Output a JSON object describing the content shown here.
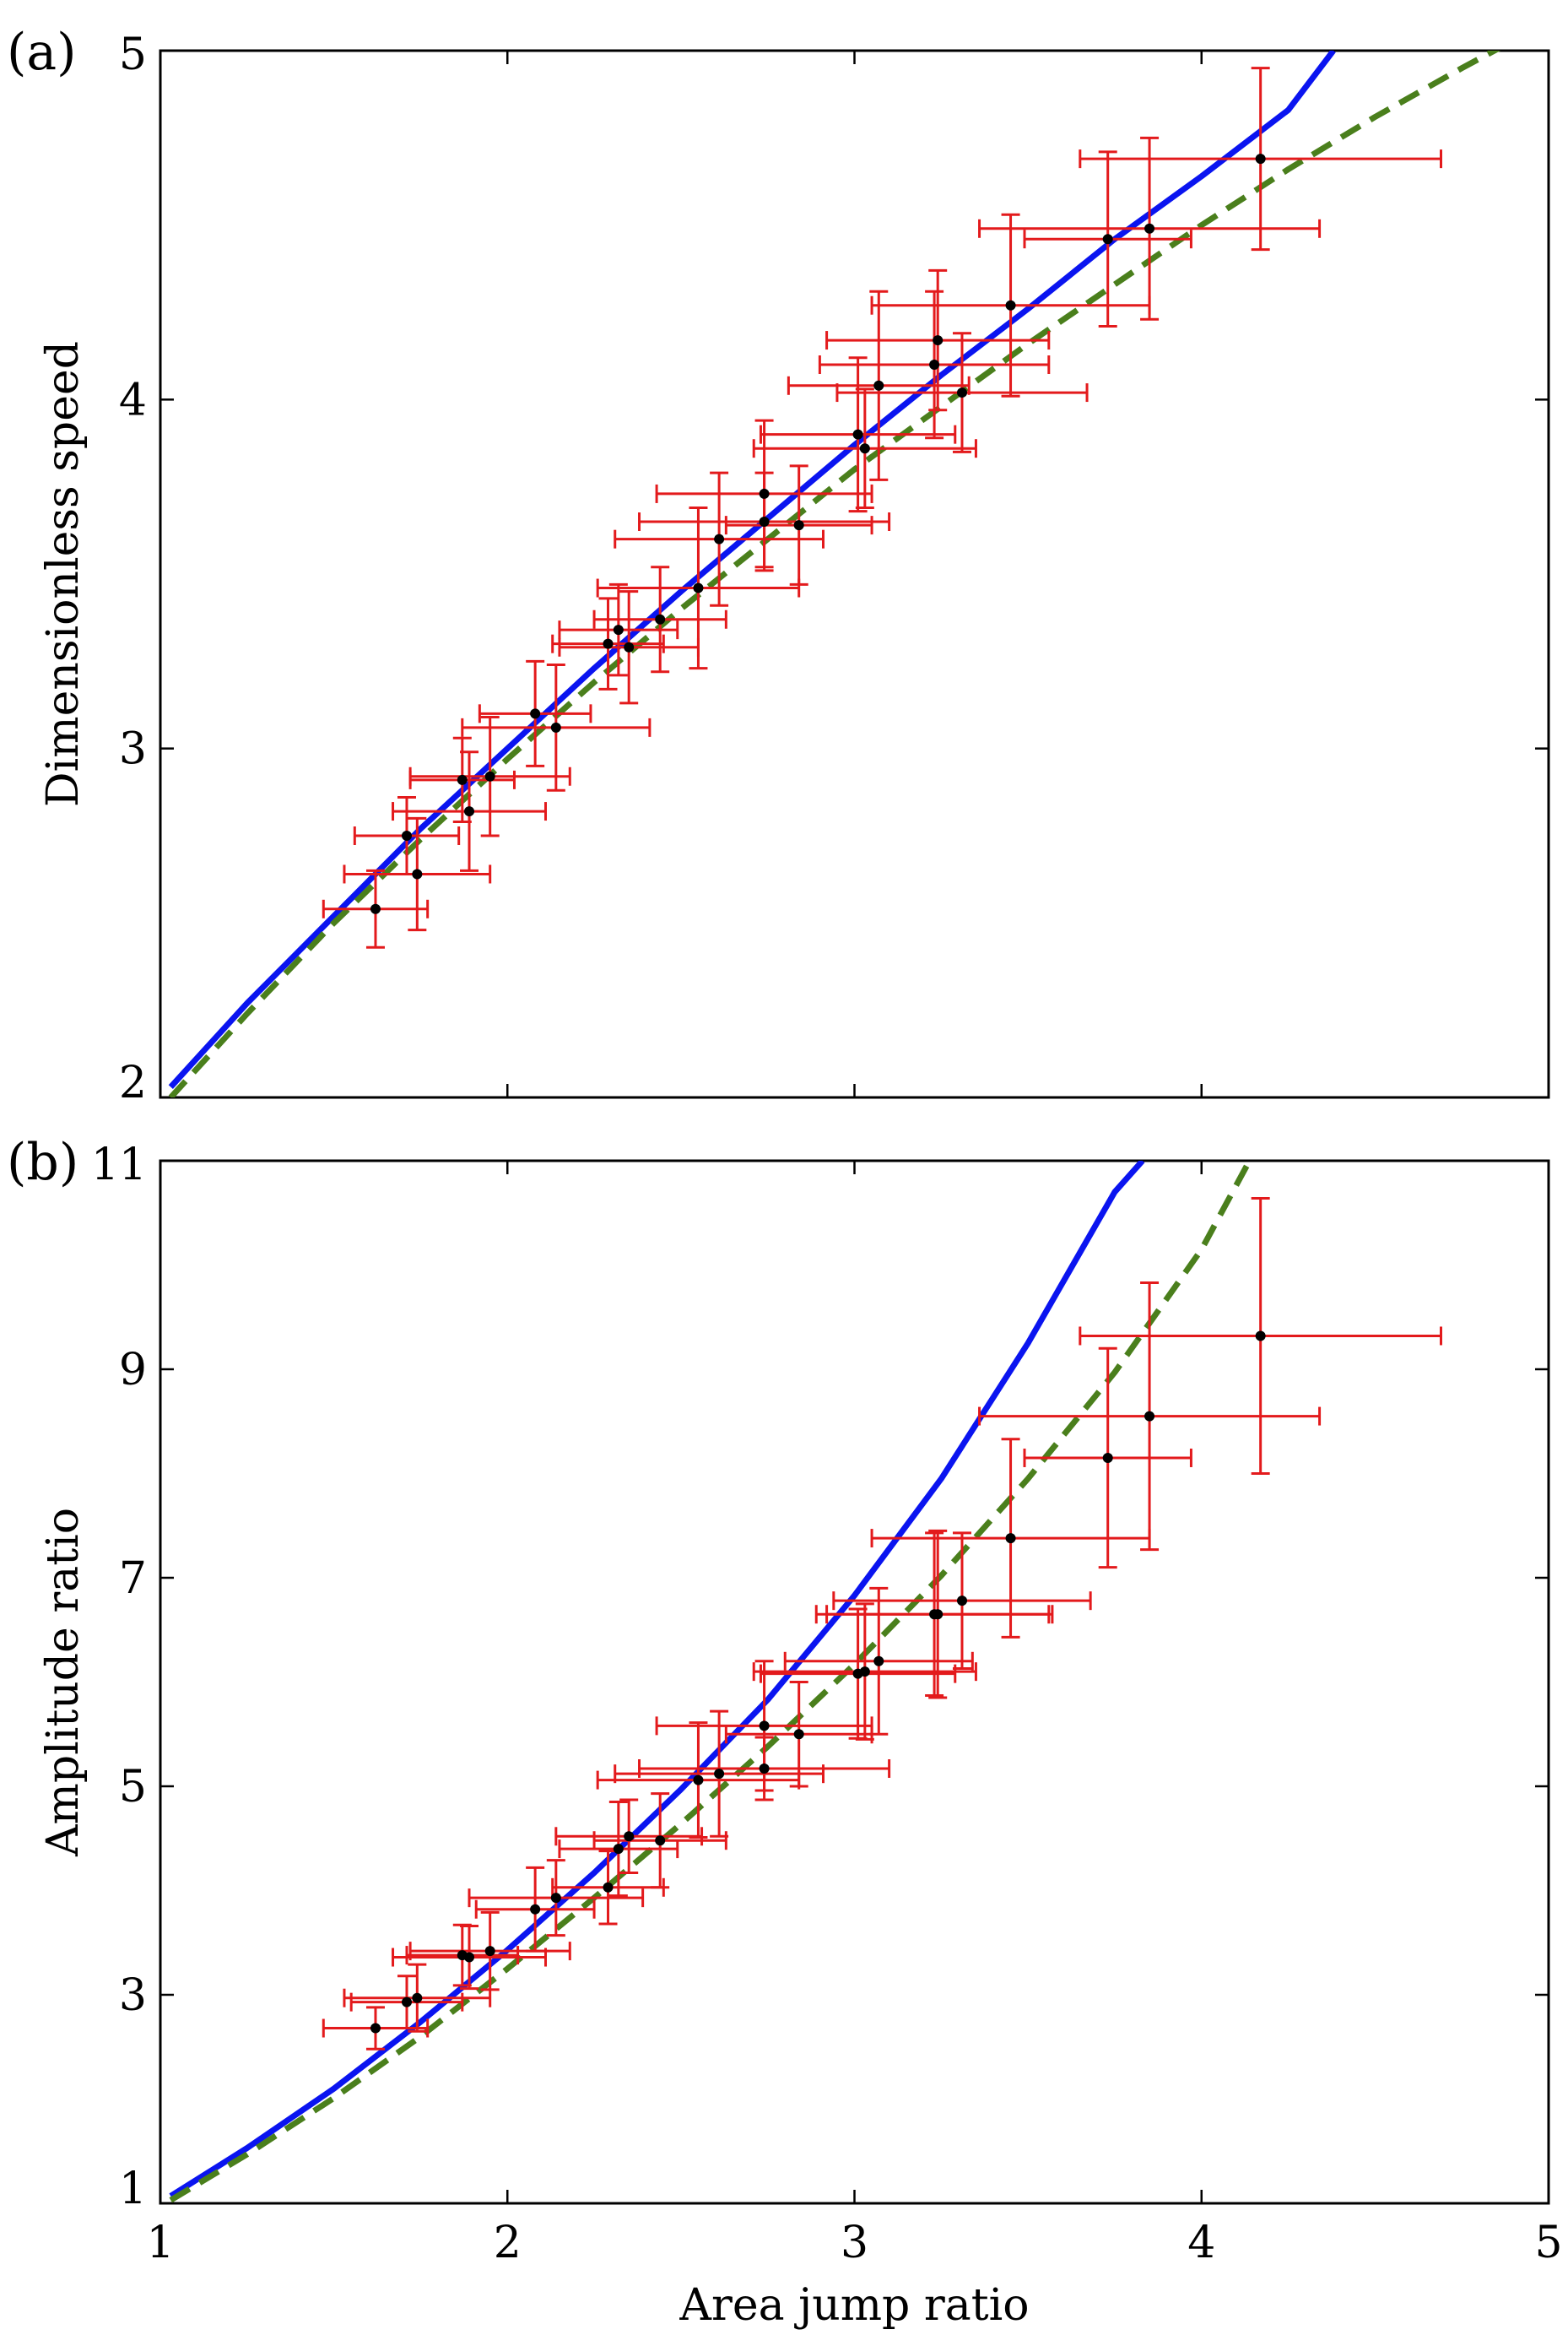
{
  "colors": {
    "theory_solid": "#0a14f0",
    "theory_dashed": "#4a7f1c",
    "error_bars": "#e31a1c",
    "points": "#000000"
  },
  "chart_data": [
    {
      "panel": "(a)",
      "type": "scatter",
      "xlabel": "",
      "ylabel": "Dimensionless speed",
      "xlim": [
        1,
        5
      ],
      "ylim": [
        2,
        5
      ],
      "xticks": [
        "1",
        "2",
        "3",
        "4",
        "5"
      ],
      "yticks": [
        "2",
        "3",
        "4",
        "5"
      ],
      "series": [
        {
          "name": "solid curve",
          "style": "solid",
          "x": [
            1.03,
            1.25,
            1.5,
            1.75,
            2.0,
            2.25,
            2.5,
            2.75,
            3.0,
            3.25,
            3.5,
            3.75,
            4.0,
            4.25,
            4.38
          ],
          "y": [
            2.03,
            2.27,
            2.52,
            2.77,
            3.0,
            3.23,
            3.45,
            3.66,
            3.87,
            4.07,
            4.26,
            4.46,
            4.64,
            4.83,
            5.0
          ]
        },
        {
          "name": "dashed curve",
          "style": "dashed",
          "x": [
            1.03,
            1.25,
            1.5,
            1.75,
            2.0,
            2.25,
            2.5,
            2.75,
            3.0,
            3.25,
            3.5,
            3.75,
            4.0,
            4.25,
            4.5,
            4.75,
            4.9
          ],
          "y": [
            2.0,
            2.24,
            2.5,
            2.74,
            2.97,
            3.19,
            3.4,
            3.6,
            3.8,
            3.98,
            4.16,
            4.33,
            4.5,
            4.66,
            4.81,
            4.95,
            5.03
          ]
        },
        {
          "name": "measurements",
          "style": "errorbar",
          "points": [
            {
              "x": 1.62,
              "y": 2.54,
              "xerr": 0.15,
              "yerr": 0.11
            },
            {
              "x": 1.71,
              "y": 2.75,
              "xerr": 0.15,
              "yerr": 0.11
            },
            {
              "x": 1.74,
              "y": 2.64,
              "xerr": 0.21,
              "yerr": 0.16
            },
            {
              "x": 1.87,
              "y": 2.91,
              "xerr": 0.15,
              "yerr": 0.12
            },
            {
              "x": 1.89,
              "y": 2.82,
              "xerr": 0.22,
              "yerr": 0.17
            },
            {
              "x": 1.95,
              "y": 2.92,
              "xerr": 0.23,
              "yerr": 0.17
            },
            {
              "x": 2.08,
              "y": 3.1,
              "xerr": 0.16,
              "yerr": 0.15
            },
            {
              "x": 2.14,
              "y": 3.06,
              "xerr": 0.27,
              "yerr": 0.18
            },
            {
              "x": 2.29,
              "y": 3.3,
              "xerr": 0.16,
              "yerr": 0.13
            },
            {
              "x": 2.32,
              "y": 3.34,
              "xerr": 0.17,
              "yerr": 0.13
            },
            {
              "x": 2.35,
              "y": 3.29,
              "xerr": 0.2,
              "yerr": 0.16
            },
            {
              "x": 2.44,
              "y": 3.37,
              "xerr": 0.19,
              "yerr": 0.15
            },
            {
              "x": 2.55,
              "y": 3.46,
              "xerr": 0.29,
              "yerr": 0.23
            },
            {
              "x": 2.61,
              "y": 3.6,
              "xerr": 0.3,
              "yerr": 0.19
            },
            {
              "x": 2.74,
              "y": 3.65,
              "xerr": 0.36,
              "yerr": 0.14
            },
            {
              "x": 2.74,
              "y": 3.73,
              "xerr": 0.31,
              "yerr": 0.21
            },
            {
              "x": 2.84,
              "y": 3.64,
              "xerr": 0.21,
              "yerr": 0.17
            },
            {
              "x": 3.01,
              "y": 3.9,
              "xerr": 0.28,
              "yerr": 0.22
            },
            {
              "x": 3.03,
              "y": 3.86,
              "xerr": 0.32,
              "yerr": 0.17
            },
            {
              "x": 3.07,
              "y": 4.04,
              "xerr": 0.26,
              "yerr": 0.27
            },
            {
              "x": 3.23,
              "y": 4.1,
              "xerr": 0.33,
              "yerr": 0.21
            },
            {
              "x": 3.24,
              "y": 4.17,
              "xerr": 0.32,
              "yerr": 0.2
            },
            {
              "x": 3.31,
              "y": 4.02,
              "xerr": 0.36,
              "yerr": 0.17
            },
            {
              "x": 3.45,
              "y": 4.27,
              "xerr": 0.4,
              "yerr": 0.26
            },
            {
              "x": 3.73,
              "y": 4.46,
              "xerr": 0.24,
              "yerr": 0.25
            },
            {
              "x": 3.85,
              "y": 4.49,
              "xerr": 0.49,
              "yerr": 0.26
            },
            {
              "x": 4.17,
              "y": 4.69,
              "xerr": 0.52,
              "yerr": 0.26
            }
          ]
        }
      ]
    },
    {
      "panel": "(b)",
      "type": "scatter",
      "xlabel": "Area jump ratio",
      "ylabel": "Amplitude ratio",
      "xlim": [
        1,
        5
      ],
      "ylim": [
        1,
        11
      ],
      "xticks": [
        "1",
        "2",
        "3",
        "4",
        "5"
      ],
      "yticks": [
        "1",
        "3",
        "5",
        "7",
        "9",
        "11"
      ],
      "series": [
        {
          "name": "solid curve",
          "style": "solid",
          "x": [
            1.03,
            1.25,
            1.5,
            1.75,
            2.0,
            2.25,
            2.5,
            2.75,
            3.0,
            3.25,
            3.5,
            3.75,
            3.83
          ],
          "y": [
            1.07,
            1.53,
            2.1,
            2.74,
            3.43,
            4.17,
            4.97,
            5.83,
            6.83,
            7.95,
            9.25,
            10.7,
            11.0
          ]
        },
        {
          "name": "dashed curve",
          "style": "dashed",
          "x": [
            1.03,
            1.25,
            1.5,
            1.75,
            2.0,
            2.25,
            2.5,
            2.75,
            3.0,
            3.25,
            3.5,
            3.75,
            4.0,
            4.13
          ],
          "y": [
            1.03,
            1.47,
            2.01,
            2.6,
            3.25,
            3.93,
            4.64,
            5.38,
            6.17,
            7.02,
            7.95,
            8.97,
            10.15,
            10.95
          ]
        },
        {
          "name": "measurements",
          "style": "errorbar",
          "points": [
            {
              "x": 1.62,
              "y": 2.68,
              "xerr": 0.15,
              "yerr": 0.2
            },
            {
              "x": 1.71,
              "y": 2.93,
              "xerr": 0.16,
              "yerr": 0.25
            },
            {
              "x": 1.74,
              "y": 2.97,
              "xerr": 0.21,
              "yerr": 0.32
            },
            {
              "x": 1.87,
              "y": 3.38,
              "xerr": 0.16,
              "yerr": 0.29
            },
            {
              "x": 1.89,
              "y": 3.36,
              "xerr": 0.22,
              "yerr": 0.3
            },
            {
              "x": 1.95,
              "y": 3.42,
              "xerr": 0.23,
              "yerr": 0.37
            },
            {
              "x": 2.08,
              "y": 3.82,
              "xerr": 0.17,
              "yerr": 0.4
            },
            {
              "x": 2.14,
              "y": 3.93,
              "xerr": 0.25,
              "yerr": 0.36
            },
            {
              "x": 2.29,
              "y": 4.03,
              "xerr": 0.16,
              "yerr": 0.35
            },
            {
              "x": 2.32,
              "y": 4.4,
              "xerr": 0.17,
              "yerr": 0.45
            },
            {
              "x": 2.35,
              "y": 4.52,
              "xerr": 0.21,
              "yerr": 0.35
            },
            {
              "x": 2.44,
              "y": 4.48,
              "xerr": 0.19,
              "yerr": 0.45
            },
            {
              "x": 2.55,
              "y": 5.06,
              "xerr": 0.29,
              "yerr": 0.55
            },
            {
              "x": 2.61,
              "y": 5.12,
              "xerr": 0.3,
              "yerr": 0.6
            },
            {
              "x": 2.74,
              "y": 5.17,
              "xerr": 0.36,
              "yerr": 0.3
            },
            {
              "x": 2.74,
              "y": 5.58,
              "xerr": 0.31,
              "yerr": 0.62
            },
            {
              "x": 2.84,
              "y": 5.5,
              "xerr": 0.21,
              "yerr": 0.5
            },
            {
              "x": 3.01,
              "y": 6.08,
              "xerr": 0.28,
              "yerr": 0.62
            },
            {
              "x": 3.03,
              "y": 6.1,
              "xerr": 0.32,
              "yerr": 0.65
            },
            {
              "x": 3.07,
              "y": 6.2,
              "xerr": 0.27,
              "yerr": 0.7
            },
            {
              "x": 3.23,
              "y": 6.65,
              "xerr": 0.34,
              "yerr": 0.78
            },
            {
              "x": 3.24,
              "y": 6.65,
              "xerr": 0.32,
              "yerr": 0.8
            },
            {
              "x": 3.31,
              "y": 6.78,
              "xerr": 0.37,
              "yerr": 0.65
            },
            {
              "x": 3.45,
              "y": 7.38,
              "xerr": 0.4,
              "yerr": 0.95
            },
            {
              "x": 3.73,
              "y": 8.15,
              "xerr": 0.24,
              "yerr": 1.05
            },
            {
              "x": 3.85,
              "y": 8.55,
              "xerr": 0.49,
              "yerr": 1.28
            },
            {
              "x": 4.17,
              "y": 9.32,
              "xerr": 0.52,
              "yerr": 1.32
            }
          ]
        }
      ]
    }
  ]
}
